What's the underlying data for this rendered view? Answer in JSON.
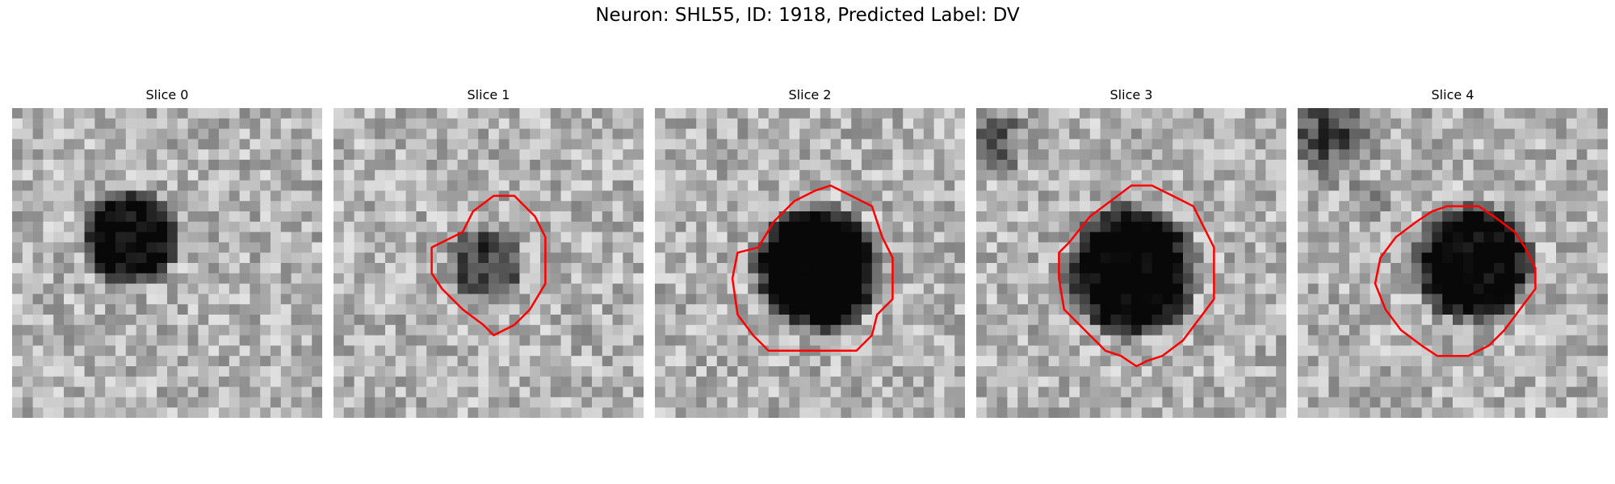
{
  "figure": {
    "title": "Neuron: SHL55, ID: 1918, Predicted Label: DV"
  },
  "panels": [
    {
      "title": "Slice 0",
      "has_contour": false
    },
    {
      "title": "Slice 1",
      "has_contour": true
    },
    {
      "title": "Slice 2",
      "has_contour": true
    },
    {
      "title": "Slice 3",
      "has_contour": true
    },
    {
      "title": "Slice 4",
      "has_contour": true
    }
  ],
  "colors": {
    "contour": "#ff0000",
    "background": "#ffffff",
    "text": "#000000"
  },
  "image": {
    "colormap": "grayscale"
  }
}
